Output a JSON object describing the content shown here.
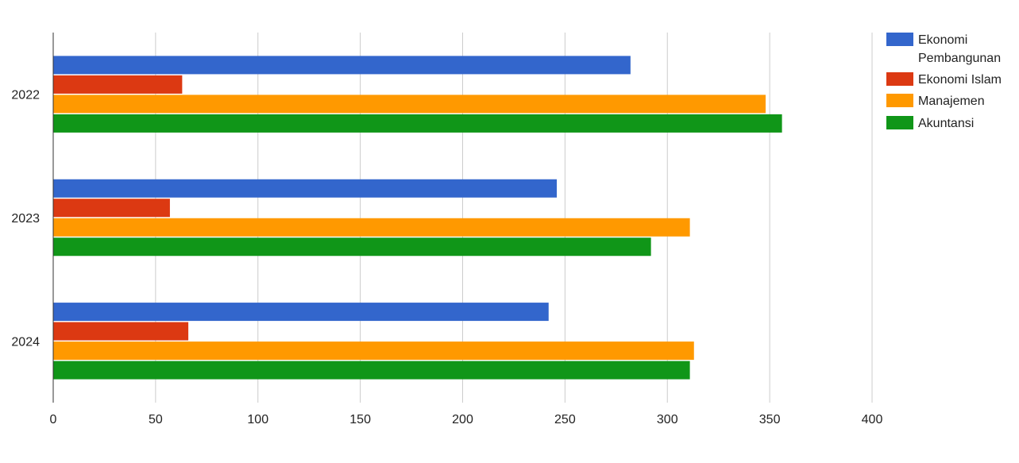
{
  "chart_data": {
    "type": "bar",
    "orientation": "horizontal",
    "categories": [
      "2022",
      "2023",
      "2024"
    ],
    "series": [
      {
        "name": "Ekonomi Pembangunan",
        "color": "#3366cc",
        "values": [
          282,
          246,
          242
        ]
      },
      {
        "name": "Ekonomi Islam",
        "color": "#dc3912",
        "values": [
          63,
          57,
          66
        ]
      },
      {
        "name": "Manajemen",
        "color": "#ff9900",
        "values": [
          348,
          311,
          313
        ]
      },
      {
        "name": "Akuntansi",
        "color": "#109618",
        "values": [
          356,
          292,
          311
        ]
      }
    ],
    "xlim": [
      0,
      400
    ],
    "xticks": [
      "0",
      "50",
      "100",
      "150",
      "200",
      "250",
      "300",
      "350",
      "400"
    ],
    "grid": true,
    "legend": "right",
    "legend_lines": [
      [
        "Ekonomi",
        "Pembangunan"
      ],
      [
        "Ekonomi Islam"
      ],
      [
        "Manajemen"
      ],
      [
        "Akuntansi"
      ]
    ]
  }
}
